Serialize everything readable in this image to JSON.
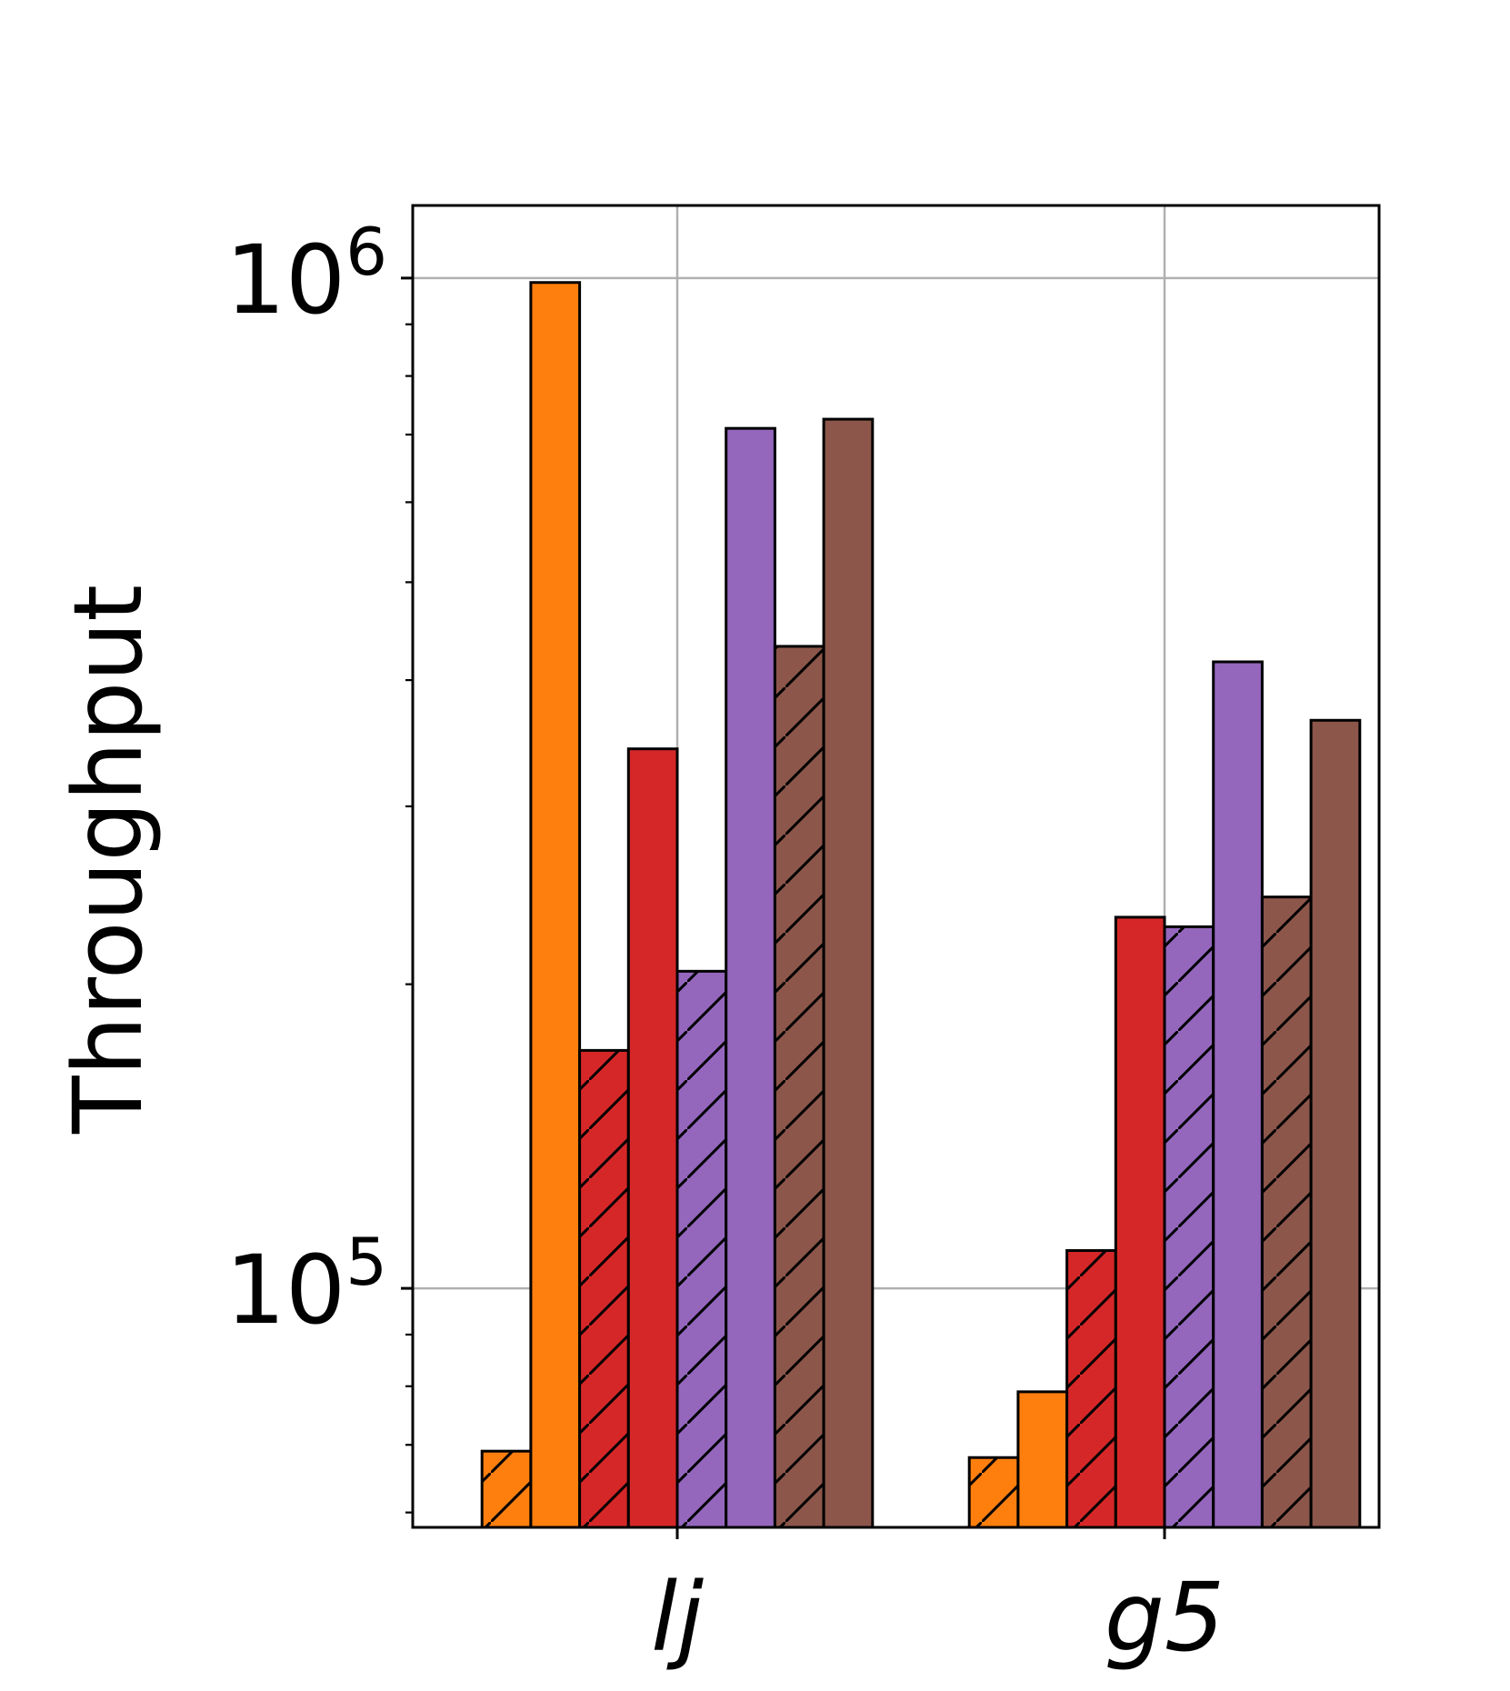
{
  "chart_data": {
    "type": "bar",
    "title": "",
    "xlabel": "",
    "ylabel": "Throughput",
    "yscale": "log",
    "ylim": [
      58000,
      1180000
    ],
    "grid": true,
    "categories": [
      "lj",
      "g5"
    ],
    "y_ticks": [
      {
        "value": 100000,
        "base": "10",
        "exp": "5"
      },
      {
        "value": 1000000,
        "base": "10",
        "exp": "6"
      }
    ],
    "series": [
      {
        "name": "orange-hatched",
        "color": "#ff7f0e",
        "hatch": true,
        "values": [
          69000,
          68000
        ]
      },
      {
        "name": "orange-solid",
        "color": "#ff7f0e",
        "hatch": false,
        "values": [
          990000,
          79000
        ]
      },
      {
        "name": "red-hatched",
        "color": "#d62728",
        "hatch": true,
        "values": [
          172000,
          109000
        ]
      },
      {
        "name": "red-solid",
        "color": "#d62728",
        "hatch": false,
        "values": [
          342000,
          233000
        ]
      },
      {
        "name": "purple-hatched",
        "color": "#9467bd",
        "hatch": true,
        "values": [
          206000,
          228000
        ]
      },
      {
        "name": "purple-solid",
        "color": "#9467bd",
        "hatch": false,
        "values": [
          710000,
          417000
        ]
      },
      {
        "name": "brown-hatched",
        "color": "#8c564b",
        "hatch": true,
        "values": [
          432000,
          244000
        ]
      },
      {
        "name": "brown-solid",
        "color": "#8c564b",
        "hatch": false,
        "values": [
          725000,
          365000
        ]
      }
    ]
  }
}
